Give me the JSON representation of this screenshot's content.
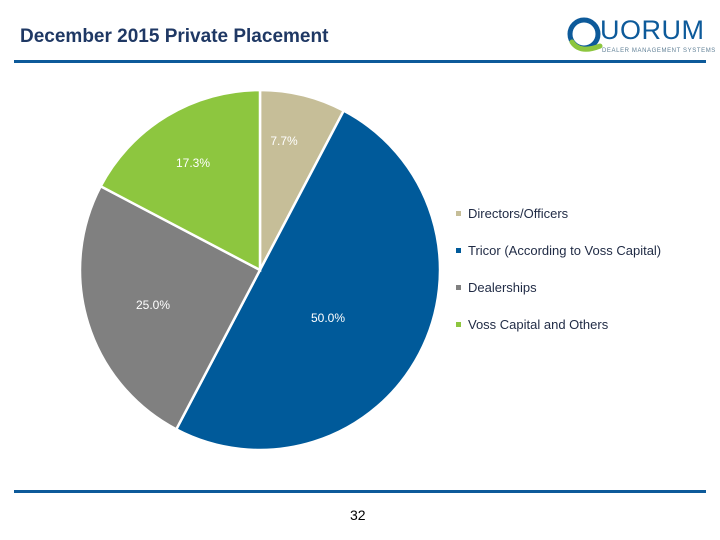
{
  "header": {
    "title": "December 2015 Private Placement",
    "logo_word": "UORUM",
    "logo_sub": "DEALER MANAGEMENT SYSTEMS"
  },
  "footer": {
    "page_number": "32"
  },
  "colors": {
    "rule": "#0d5a9a",
    "slices": [
      "#c6be98",
      "#005a9a",
      "#808080",
      "#8dc63f"
    ]
  },
  "chart_data": {
    "type": "pie",
    "title": "",
    "legend_position": "right",
    "series": [
      {
        "name": "Directors/Officers",
        "value": 7.7,
        "label": "7.7%"
      },
      {
        "name": "Tricor (According to Voss Capital)",
        "value": 50.0,
        "label": "50.0%"
      },
      {
        "name": "Dealerships",
        "value": 25.0,
        "label": "25.0%"
      },
      {
        "name": "Voss Capital and Others",
        "value": 17.3,
        "label": "17.3%"
      }
    ]
  }
}
